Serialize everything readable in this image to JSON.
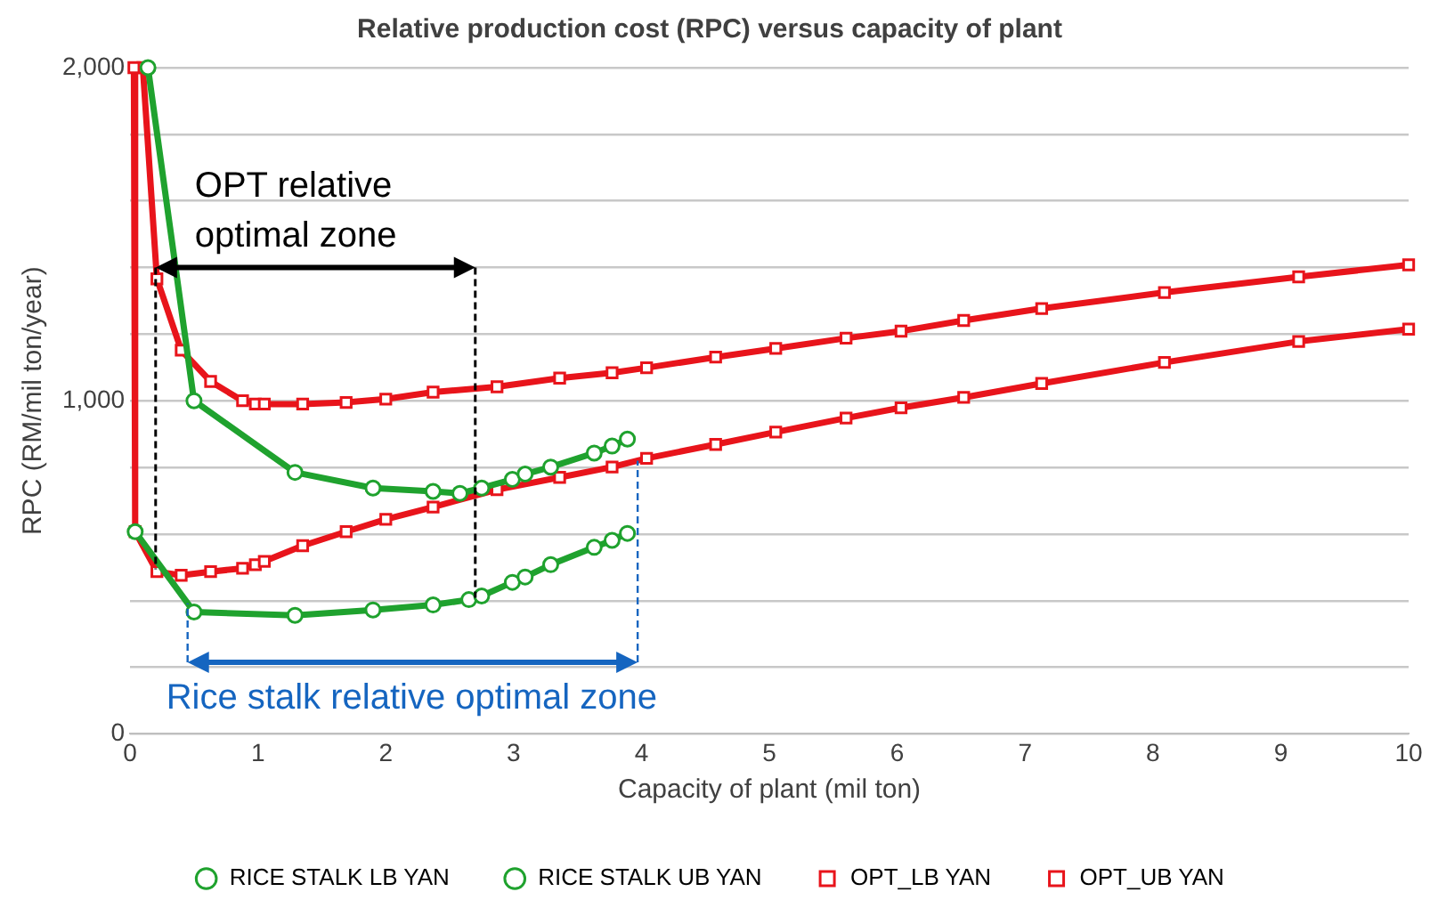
{
  "chart_data": {
    "type": "line",
    "title": "Relative production cost (RPC) versus capacity of plant",
    "xlabel": "Capacity of plant (mil ton)",
    "ylabel": "RPC (RM/mil ton/year)",
    "xlim": [
      0,
      10
    ],
    "xticks": [
      0,
      1,
      2,
      3,
      4,
      5,
      6,
      7,
      8,
      9,
      10
    ],
    "ylim": [
      0,
      2000
    ],
    "yticks": [
      0,
      {
        "value": 200,
        "label": null
      },
      {
        "value": 400,
        "label": null
      },
      {
        "value": 600,
        "label": null
      },
      {
        "value": 800,
        "label": null
      },
      {
        "value": 1000,
        "label": "1,000"
      },
      {
        "value": 1200,
        "label": null
      },
      {
        "value": 1400,
        "label": null
      },
      {
        "value": 1600,
        "label": null
      },
      {
        "value": 1800,
        "label": null
      },
      {
        "value": 2000,
        "label": "2,000"
      }
    ],
    "grid": "y",
    "legend": "bottom",
    "series": [
      {
        "name": "RICE STALK LB YAN",
        "color": "#1fa22e",
        "marker": "circle",
        "x": [
          0.04,
          0.5,
          1.29,
          1.9,
          2.37,
          2.65,
          2.75,
          2.99,
          3.09,
          3.29,
          3.63,
          3.77,
          3.89
        ],
        "values": [
          607,
          366,
          356,
          372,
          387,
          403,
          414,
          455,
          471,
          508,
          560,
          581,
          602
        ]
      },
      {
        "name": "RICE STALK UB YAN",
        "color": "#1fa22e",
        "marker": "circle",
        "x": [
          0.14,
          0.5,
          1.29,
          1.9,
          2.37,
          2.58,
          2.75,
          2.99,
          3.09,
          3.29,
          3.63,
          3.77,
          3.89
        ],
        "values": [
          2000,
          1000,
          785,
          738,
          728,
          722,
          738,
          764,
          780,
          801,
          843,
          864,
          885
        ]
      },
      {
        "name": "OPT_LB YAN",
        "color": "#e8141b",
        "marker": "square",
        "x": [
          0.03,
          0.04,
          0.21,
          0.4,
          0.63,
          0.88,
          0.98,
          1.05,
          1.35,
          1.69,
          2.0,
          2.37,
          2.87,
          3.36,
          3.77,
          4.04,
          4.58,
          5.05,
          5.6,
          6.03,
          6.52,
          7.13,
          8.09,
          9.14,
          10
        ],
        "values": [
          2000,
          607,
          487,
          476,
          487,
          497,
          508,
          518,
          565,
          607,
          644,
          681,
          733,
          770,
          801,
          827,
          869,
          906,
          948,
          979,
          1010,
          1052,
          1115,
          1178,
          1215
        ]
      },
      {
        "name": "OPT_UB YAN",
        "color": "#e8141b",
        "marker": "square",
        "x": [
          0.1,
          0.21,
          0.4,
          0.63,
          0.88,
          0.98,
          1.05,
          1.35,
          1.69,
          2.0,
          2.37,
          2.87,
          3.36,
          3.77,
          4.04,
          4.58,
          5.05,
          5.6,
          6.03,
          6.52,
          7.13,
          8.09,
          9.14,
          10
        ],
        "values": [
          2000,
          1366,
          1152,
          1058,
          1000,
          990,
          990,
          990,
          995,
          1005,
          1026,
          1042,
          1068,
          1084,
          1099,
          1131,
          1157,
          1188,
          1209,
          1241,
          1277,
          1325,
          1372,
          1408
        ]
      }
    ],
    "ref_lines": [
      {
        "axis": "x",
        "value": 0.2,
        "color": "#000000",
        "line_style": "dashed"
      },
      {
        "axis": "x",
        "value": 2.7,
        "color": "#000000",
        "line_style": "dashed"
      },
      {
        "axis": "x",
        "value": 0.45,
        "color": "#1565c0",
        "line_style": "dashed"
      },
      {
        "axis": "x",
        "value": 3.97,
        "color": "#1565c0",
        "line_style": "dashed"
      }
    ],
    "annotations": [
      {
        "text": "OPT relative optimal zone",
        "x": 0.2,
        "y": 1400
      },
      {
        "text": "Rice stalk relative optimal zone",
        "x": 0.45,
        "y": 215
      }
    ]
  }
}
